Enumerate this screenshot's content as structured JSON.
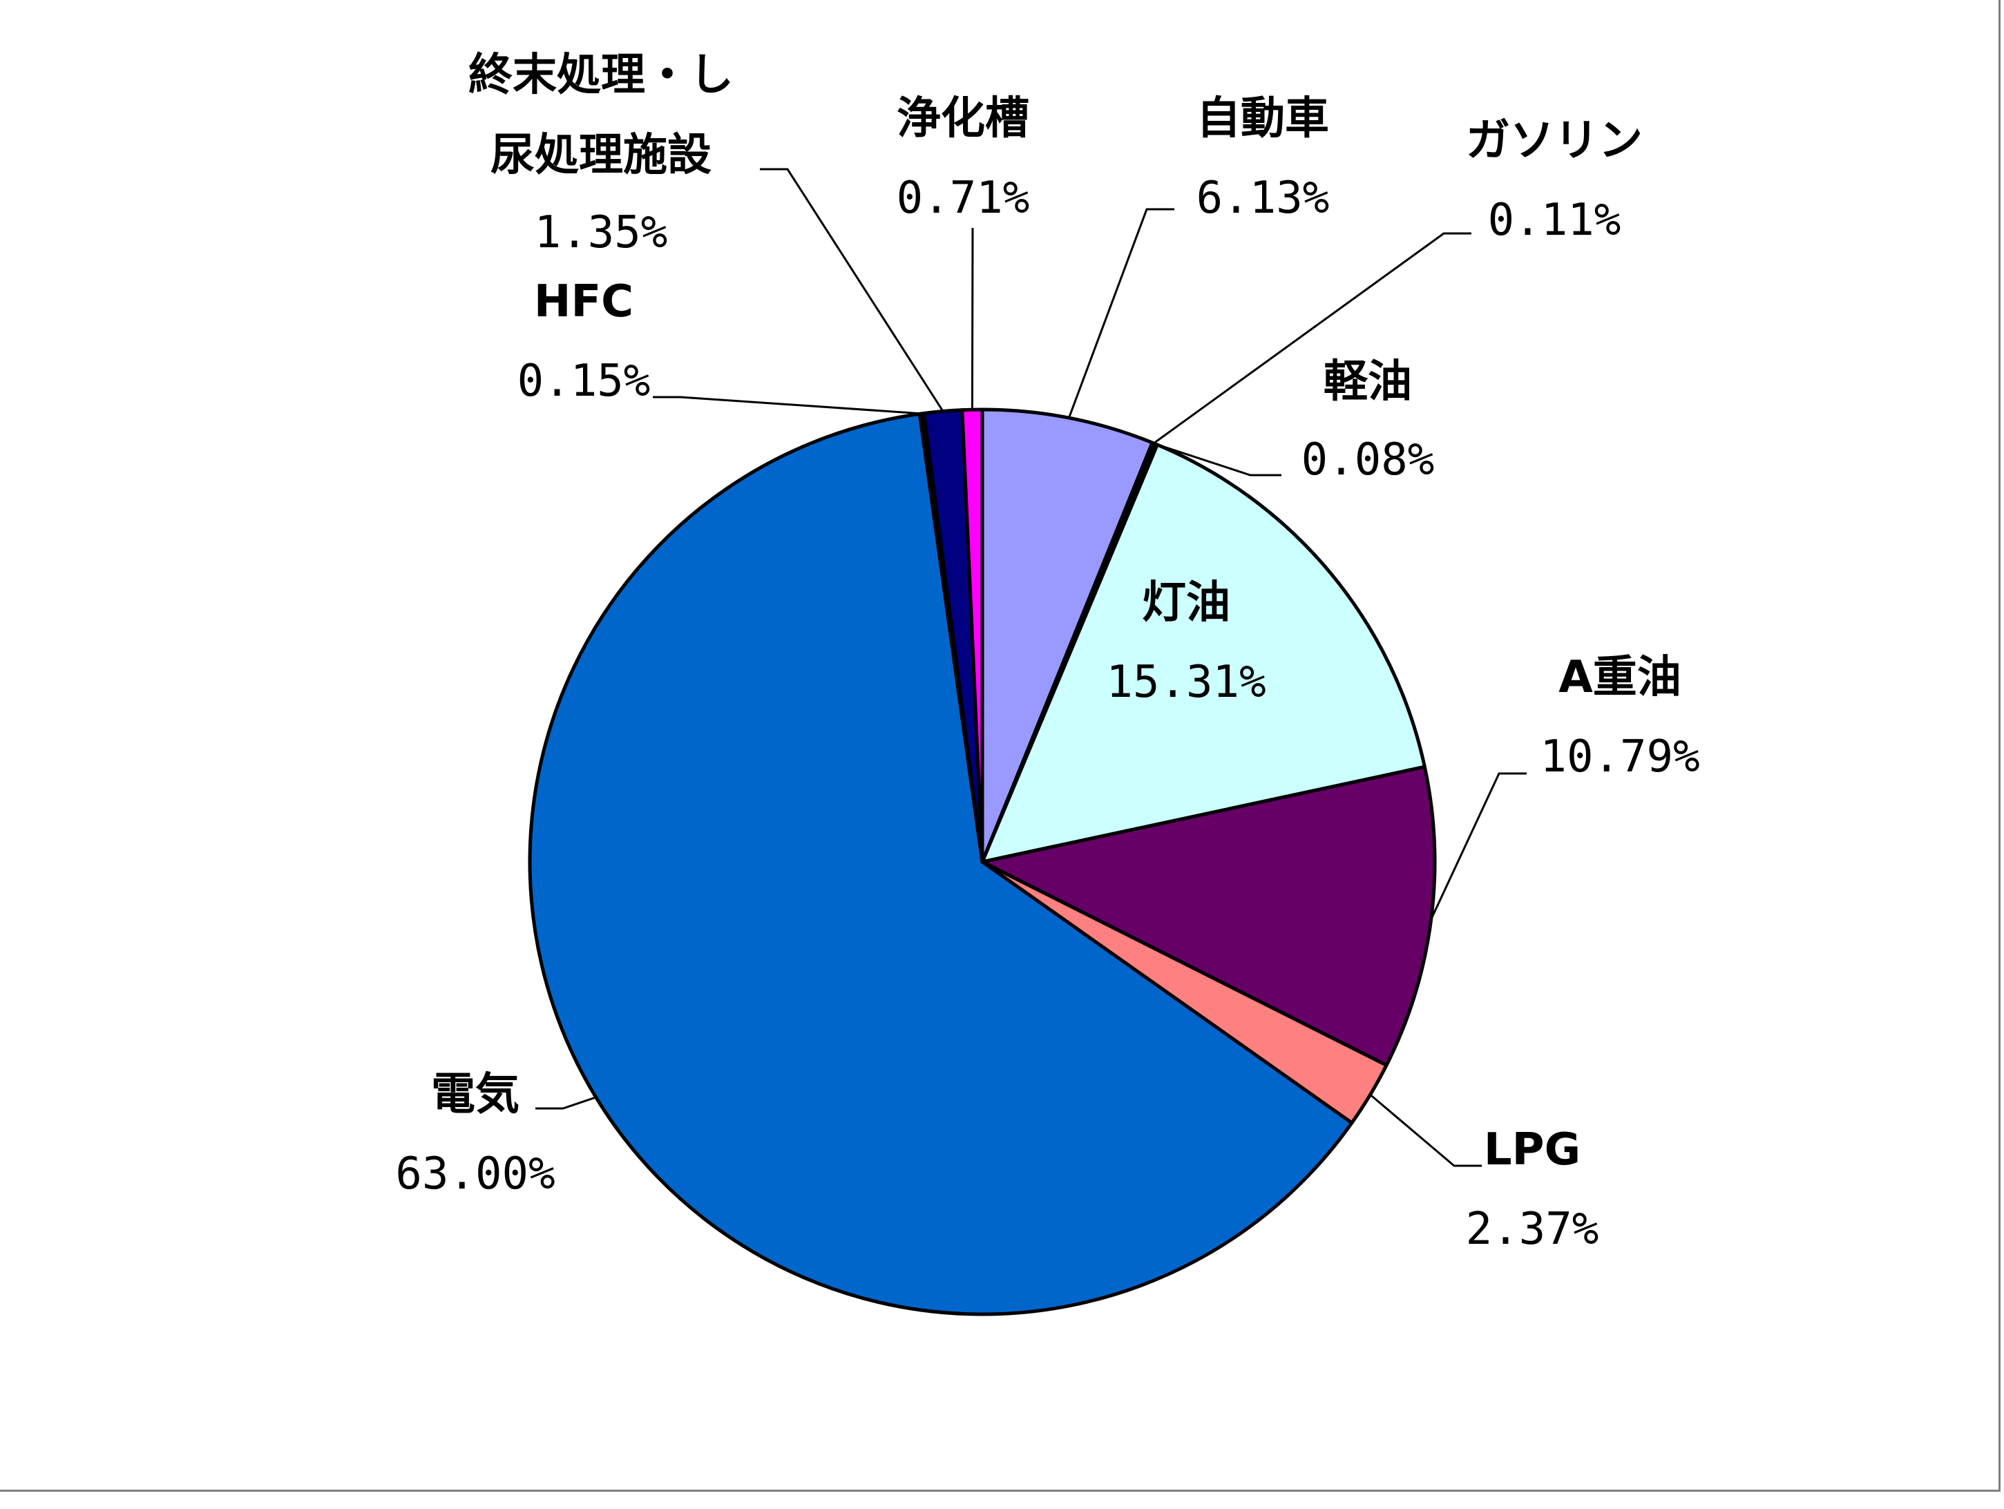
{
  "chart_data": {
    "type": "pie",
    "title": "",
    "legend": "none",
    "slices": [
      {
        "name": "自動車",
        "value": 6.13,
        "label": "6.13%",
        "color": "#9999FF"
      },
      {
        "name": "ガソリン",
        "value": 0.11,
        "label": "0.11%",
        "color": "#0A2A66"
      },
      {
        "name": "軽油",
        "value": 0.08,
        "label": "0.08%",
        "color": "#000000"
      },
      {
        "name": "灯油",
        "value": 15.31,
        "label": "15.31%",
        "color": "#CCFFFF"
      },
      {
        "name": "A重油",
        "value": 10.79,
        "label": "10.79%",
        "color": "#660066"
      },
      {
        "name": "LPG",
        "value": 2.37,
        "label": "2.37%",
        "color": "#FF8080"
      },
      {
        "name": "電気",
        "value": 63.0,
        "label": "63.00%",
        "color": "#0066CC"
      },
      {
        "name": "HFC",
        "value": 0.15,
        "label": "0.15%",
        "color": "#000000"
      },
      {
        "name": "終末処理・し尿処理施設",
        "value": 1.35,
        "label": "1.35%",
        "color": "#000080"
      },
      {
        "name": "浄化槽",
        "value": 0.71,
        "label": "0.71%",
        "color": "#FF00FF"
      }
    ]
  }
}
